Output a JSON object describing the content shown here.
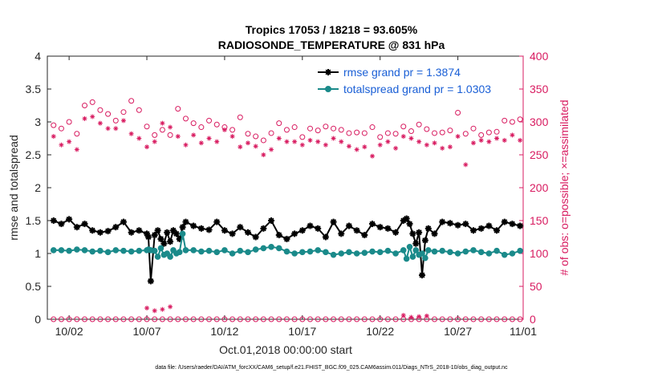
{
  "chart_data": {
    "type": "line",
    "title_line1": "Tropics 17053 / 18218 = 93.605%",
    "title_line2": "RADIOSONDE_TEMPERATURE @ 831 hPa",
    "xlabel": "Oct.01,2018 00:00:00 start",
    "ylabel_left": "rmse and totalspread",
    "ylabel_right": "# of obs: o=possible; ×=assimilated",
    "footnote": "data file: /Users/raeder/DAI/ATM_forcXX/CAM6_setup/f.e21.FHIST_BGC.f09_025.CAM6assim.011/Diags_NTrS_2018-10/obs_diag_output.nc",
    "xlim": [
      0.6,
      31.2
    ],
    "ylim_left": [
      0,
      4
    ],
    "ylim_right": [
      0,
      400
    ],
    "x_ticks": [
      2,
      7,
      12,
      17,
      22,
      27,
      32
    ],
    "x_tick_labels": [
      "10/02",
      "10/07",
      "10/12",
      "10/17",
      "10/22",
      "10/27",
      "11/01"
    ],
    "y_left_ticks": [
      0,
      0.5,
      1,
      1.5,
      2,
      2.5,
      3,
      3.5,
      4
    ],
    "y_left_tick_labels": [
      "0",
      "0.5",
      "1",
      "1.5",
      "2",
      "2.5",
      "3",
      "3.5",
      "4"
    ],
    "y_right_ticks": [
      0,
      50,
      100,
      150,
      200,
      250,
      300,
      350,
      400
    ],
    "y_right_tick_labels": [
      "0",
      "50",
      "100",
      "150",
      "200",
      "250",
      "300",
      "350",
      "400"
    ],
    "legend": [
      {
        "name": "rmse grand pr = 1.3874",
        "color": "#000000"
      },
      {
        "name": "totalspread grand pr = 1.0303",
        "color": "#1a8a8a"
      }
    ],
    "series": [
      {
        "name": "rmse",
        "color": "#000000",
        "marker": "asterisk-filled",
        "x": [
          1.0,
          1.5,
          2.0,
          2.5,
          3.0,
          3.5,
          4.0,
          4.5,
          5.0,
          5.5,
          6.0,
          6.5,
          7.0,
          7.1,
          7.25,
          7.5,
          7.7,
          7.9,
          8.1,
          8.3,
          8.5,
          8.7,
          8.9,
          9.1,
          9.3,
          9.5,
          10.0,
          10.5,
          11.0,
          11.5,
          12.0,
          12.5,
          13.0,
          13.5,
          14.0,
          14.5,
          15.0,
          15.5,
          16.0,
          16.5,
          17.0,
          17.5,
          18.0,
          18.5,
          19.0,
          19.5,
          20.0,
          20.5,
          21.0,
          21.5,
          22.0,
          22.5,
          23.0,
          23.5,
          23.7,
          23.9,
          24.1,
          24.3,
          24.5,
          24.7,
          24.9,
          25.1,
          25.5,
          26.0,
          26.5,
          27.0,
          27.5,
          28.0,
          28.5,
          29.0,
          29.5,
          30.0,
          30.5,
          31.0
        ],
        "y": [
          1.5,
          1.45,
          1.52,
          1.4,
          1.45,
          1.35,
          1.32,
          1.34,
          1.4,
          1.48,
          1.32,
          1.35,
          1.3,
          1.25,
          0.58,
          1.28,
          1.35,
          1.22,
          1.15,
          1.32,
          1.18,
          1.35,
          1.3,
          1.22,
          1.4,
          1.48,
          1.42,
          1.38,
          1.36,
          1.48,
          1.35,
          1.3,
          1.4,
          1.32,
          1.25,
          1.38,
          1.5,
          1.28,
          1.22,
          1.3,
          1.35,
          1.42,
          1.38,
          1.25,
          1.48,
          1.3,
          1.42,
          1.35,
          1.28,
          1.45,
          1.4,
          1.38,
          1.32,
          1.5,
          1.53,
          1.45,
          1.3,
          1.15,
          1.32,
          0.67,
          1.2,
          1.38,
          1.3,
          1.48,
          1.46,
          1.43,
          1.45,
          1.35,
          1.38,
          1.42,
          1.35,
          1.48,
          1.45,
          1.42
        ]
      },
      {
        "name": "totalspread",
        "color": "#1a8a8a",
        "marker": "circle-filled",
        "x": [
          1.0,
          1.5,
          2.0,
          2.5,
          3.0,
          3.5,
          4.0,
          4.5,
          5.0,
          5.5,
          6.0,
          6.5,
          7.0,
          7.1,
          7.25,
          7.5,
          7.7,
          7.9,
          8.1,
          8.3,
          8.5,
          8.7,
          8.9,
          9.1,
          9.3,
          9.5,
          10.0,
          10.5,
          11.0,
          11.5,
          12.0,
          12.5,
          13.0,
          13.5,
          14.0,
          14.5,
          15.0,
          15.5,
          16.0,
          16.5,
          17.0,
          17.5,
          18.0,
          18.5,
          19.0,
          19.5,
          20.0,
          20.5,
          21.0,
          21.5,
          22.0,
          22.5,
          23.0,
          23.5,
          23.7,
          23.9,
          24.1,
          24.3,
          24.5,
          24.7,
          24.9,
          25.1,
          25.5,
          26.0,
          26.5,
          27.0,
          27.5,
          28.0,
          28.5,
          29.0,
          29.5,
          30.0,
          30.5,
          31.0
        ],
        "y": [
          1.05,
          1.05,
          1.04,
          1.06,
          1.05,
          1.03,
          1.04,
          1.02,
          1.05,
          1.04,
          1.03,
          1.04,
          1.05,
          1.06,
          1.05,
          1.04,
          0.95,
          1.08,
          0.98,
          1.0,
          0.95,
          1.05,
          1.0,
          1.02,
          1.3,
          1.05,
          1.05,
          1.03,
          1.04,
          1.02,
          1.05,
          1.0,
          1.04,
          1.02,
          1.06,
          1.08,
          1.1,
          1.08,
          1.03,
          1.0,
          1.02,
          1.03,
          1.05,
          1.02,
          0.98,
          1.0,
          1.02,
          1.0,
          1.01,
          1.03,
          1.02,
          1.04,
          1.0,
          1.05,
          0.92,
          1.1,
          0.95,
          1.05,
          0.98,
          1.0,
          0.93,
          1.05,
          1.03,
          1.04,
          1.02,
          1.0,
          1.03,
          1.05,
          1.02,
          1.0,
          1.04,
          0.98,
          1.0,
          1.04
        ]
      },
      {
        "name": "possible obs",
        "color": "#d81b60",
        "marker": "circle-open",
        "axis": "right",
        "x": [
          1.0,
          1.5,
          2.0,
          2.5,
          3.0,
          3.5,
          4.0,
          4.5,
          5.0,
          5.5,
          6.0,
          6.5,
          7.0,
          7.5,
          8.0,
          8.5,
          9.0,
          9.5,
          10.0,
          10.5,
          11.0,
          11.5,
          12.0,
          12.5,
          13.0,
          13.5,
          14.0,
          14.5,
          15.0,
          15.5,
          16.0,
          16.5,
          17.0,
          17.5,
          18.0,
          18.5,
          19.0,
          19.5,
          20.0,
          20.5,
          21.0,
          21.5,
          22.0,
          22.5,
          23.0,
          23.5,
          24.0,
          24.5,
          25.0,
          25.5,
          26.0,
          26.5,
          27.0,
          27.5,
          28.0,
          28.5,
          29.0,
          29.5,
          30.0,
          30.5,
          31.0
        ],
        "y": [
          295,
          290,
          300,
          282,
          325,
          330,
          318,
          312,
          302,
          315,
          332,
          318,
          293,
          280,
          288,
          280,
          320,
          305,
          298,
          292,
          302,
          296,
          292,
          288,
          307,
          282,
          278,
          272,
          283,
          298,
          288,
          292,
          277,
          290,
          287,
          293,
          290,
          288,
          283,
          284,
          283,
          292,
          277,
          283,
          282,
          293,
          286,
          296,
          289,
          283,
          284,
          287,
          314,
          282,
          290,
          280,
          284,
          285,
          302,
          300,
          304
        ]
      },
      {
        "name": "assimilated obs",
        "color": "#d81b60",
        "marker": "asterisk",
        "axis": "right",
        "x": [
          1.0,
          1.5,
          2.0,
          2.5,
          3.0,
          3.5,
          4.0,
          4.5,
          5.0,
          5.5,
          6.0,
          6.5,
          7.0,
          7.5,
          8.0,
          8.5,
          9.0,
          9.5,
          10.0,
          10.5,
          11.0,
          11.5,
          12.0,
          12.5,
          13.0,
          13.5,
          14.0,
          14.5,
          15.0,
          15.5,
          16.0,
          16.5,
          17.0,
          17.5,
          18.0,
          18.5,
          19.0,
          19.5,
          20.0,
          20.5,
          21.0,
          21.5,
          22.0,
          22.5,
          23.0,
          23.5,
          24.0,
          24.5,
          25.0,
          25.5,
          26.0,
          26.5,
          27.0,
          27.5,
          28.0,
          28.5,
          29.0,
          29.5,
          30.0,
          30.5,
          31.0
        ],
        "y": [
          278,
          265,
          270,
          258,
          305,
          308,
          298,
          290,
          290,
          302,
          282,
          275,
          262,
          270,
          298,
          292,
          278,
          265,
          280,
          268,
          275,
          270,
          288,
          278,
          262,
          268,
          263,
          250,
          258,
          275,
          270,
          270,
          265,
          272,
          270,
          265,
          275,
          270,
          263,
          258,
          262,
          248,
          265,
          270,
          260,
          278,
          275,
          270,
          265,
          268,
          260,
          262,
          278,
          235,
          268,
          272,
          270,
          275,
          272,
          280,
          272
        ]
      },
      {
        "name": "possible obs low",
        "color": "#d81b60",
        "marker": "circle-open",
        "axis": "right",
        "x": [
          1.0,
          1.5,
          2.0,
          2.5,
          3.0,
          3.5,
          4.0,
          4.5,
          5.0,
          5.5,
          6.0,
          6.5,
          7.0,
          7.5,
          8.0,
          8.5,
          9.0,
          9.5,
          10.0,
          10.5,
          11.0,
          11.5,
          12.0,
          12.5,
          13.0,
          13.5,
          14.0,
          14.5,
          15.0,
          15.5,
          16.0,
          16.5,
          17.0,
          17.5,
          18.0,
          18.5,
          19.0,
          19.5,
          20.0,
          20.5,
          21.0,
          21.5,
          22.0,
          22.5,
          23.0,
          23.5,
          24.0,
          24.5,
          25.0,
          25.5,
          26.0,
          26.5,
          27.0,
          27.5,
          28.0,
          28.5,
          29.0,
          29.5,
          30.0,
          30.5,
          31.0
        ],
        "y": [
          0,
          0,
          0,
          0,
          0,
          0,
          0,
          0,
          0,
          0,
          0,
          0,
          0,
          0,
          0,
          0,
          0,
          0,
          0,
          0,
          0,
          0,
          0,
          0,
          0,
          0,
          0,
          0,
          0,
          0,
          0,
          0,
          0,
          0,
          0,
          0,
          0,
          0,
          0,
          0,
          0,
          0,
          0,
          0,
          0,
          0,
          0,
          0,
          0,
          0,
          0,
          0,
          0,
          0,
          0,
          0,
          0,
          0,
          0,
          0,
          0
        ]
      },
      {
        "name": "assimilated obs low",
        "color": "#d81b60",
        "marker": "asterisk",
        "axis": "right",
        "x": [
          7.0,
          7.5,
          8.0,
          8.5,
          23.5,
          24.0,
          24.5,
          25.0
        ],
        "y": [
          17,
          13,
          15,
          19,
          6,
          3,
          4,
          5
        ]
      }
    ]
  }
}
